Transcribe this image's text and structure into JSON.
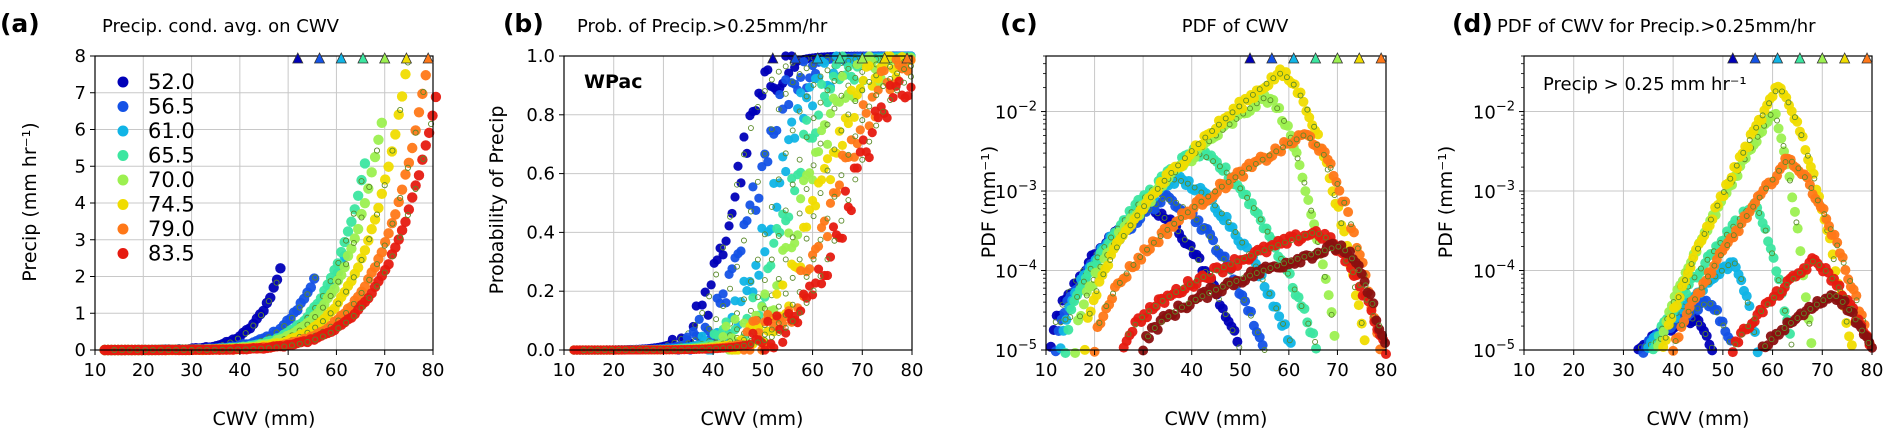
{
  "figure": {
    "colors": [
      "#0000b8",
      "#1452e6",
      "#10b4e6",
      "#3ce6a0",
      "#9cf050",
      "#f0dc00",
      "#ff7818",
      "#e61a10",
      "#8b1010"
    ],
    "open_color": "#5a8a28"
  },
  "chart_data": [
    {
      "type": "scatter",
      "letter": "(a)",
      "title": "Precip. cond. avg. on CWV",
      "xlabel": "CWV (mm)",
      "ylabel": "Precip (mm hr⁻¹)",
      "xlim": [
        10,
        80
      ],
      "ylim": [
        0,
        8
      ],
      "xticks": [
        "10",
        "20",
        "30",
        "40",
        "50",
        "60",
        "70",
        "80"
      ],
      "yticks": [
        "0",
        "1",
        "2",
        "3",
        "4",
        "5",
        "6",
        "7",
        "8"
      ],
      "grid": true,
      "legend": {
        "placement": "upper-left",
        "entries": [
          "52.0",
          "56.5",
          "61.0",
          "65.5",
          "70.0",
          "74.5",
          "79.0",
          "83.5"
        ]
      },
      "series": [
        {
          "value": "52.0",
          "x_end": 49,
          "y_end": 2.4
        },
        {
          "value": "56.5",
          "x_end": 56,
          "y_end": 2.1
        },
        {
          "value": "61.0",
          "x_end": 62,
          "y_end": 2.6
        },
        {
          "value": "65.5",
          "x_end": 66,
          "y_end": 5.1
        },
        {
          "value": "70.0",
          "x_end": 70,
          "y_end": 6.6
        },
        {
          "value": "74.5",
          "x_end": 75,
          "y_end": 8.0
        },
        {
          "value": "79.0",
          "x_end": 79,
          "y_end": 7.8
        },
        {
          "value": "83.5",
          "x_end": 81,
          "y_end": 7.1
        }
      ],
      "markers_top": true
    },
    {
      "type": "scatter",
      "letter": "(b)",
      "title": "Prob. of Precip.>0.25mm/hr",
      "xlabel": "CWV (mm)",
      "ylabel": "Probability of Precip",
      "annotation": "WPac",
      "xlim": [
        10,
        80
      ],
      "ylim": [
        0,
        1
      ],
      "xticks": [
        "10",
        "20",
        "30",
        "40",
        "50",
        "60",
        "70",
        "80"
      ],
      "yticks": [
        "0.0",
        "0.2",
        "0.4",
        "0.6",
        "0.8",
        "1.0"
      ],
      "grid": true,
      "series_midpoints": [
        44,
        48,
        52,
        55,
        58,
        61,
        64,
        67
      ],
      "markers_top": true
    },
    {
      "type": "scatter",
      "letter": "(c)",
      "title": "PDF of CWV",
      "xlabel": "CWV (mm)",
      "ylabel": "PDF (mm⁻¹)",
      "xlim": [
        10,
        80
      ],
      "yscale": "log",
      "ylim": [
        1e-05,
        0.05
      ],
      "xticks": [
        "10",
        "20",
        "30",
        "40",
        "50",
        "60",
        "70",
        "80"
      ],
      "yticks_exp": [
        "-2",
        "-3",
        "-4",
        "-5"
      ],
      "grid": true,
      "markers_top": true
    },
    {
      "type": "scatter",
      "letter": "(d)",
      "title": "PDF of CWV for Precip.>0.25mm/hr",
      "xlabel": "CWV (mm)",
      "ylabel": "PDF (mm⁻¹)",
      "annotation": "Precip > 0.25 mm hr⁻¹",
      "xlim": [
        10,
        80
      ],
      "yscale": "log",
      "ylim": [
        1e-05,
        0.05
      ],
      "xticks": [
        "10",
        "20",
        "30",
        "40",
        "50",
        "60",
        "70",
        "80"
      ],
      "yticks_exp": [
        "-2",
        "-3",
        "-4",
        "-5"
      ],
      "grid": true,
      "markers_top": true
    }
  ]
}
